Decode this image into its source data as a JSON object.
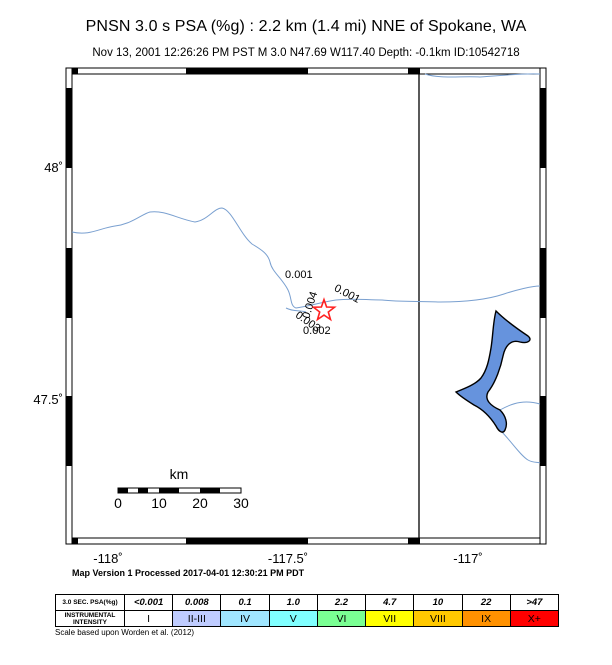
{
  "title": "PNSN 3.0 s PSA (%g) : 2.2 km (1.4 mi) NNE of Spokane, WA",
  "subtitle": "Nov 13, 2001 12:26:26 PM PST   M 3.0   N47.69 W117.40   Depth: -0.1km   ID:10542718",
  "map": {
    "lon_range": [
      -118.1,
      -116.8
    ],
    "lat_range": [
      47.2,
      48.2
    ],
    "lon_ticks": [
      {
        "label": "-118˚",
        "value": -118.0
      },
      {
        "label": "-117.5˚",
        "value": -117.5
      },
      {
        "label": "-117˚",
        "value": -117.0
      }
    ],
    "lat_ticks": [
      {
        "label": "48˚",
        "value": 48.0
      },
      {
        "label": "47.5˚",
        "value": 47.5
      }
    ],
    "epicenter": {
      "lon": -117.4,
      "lat": 47.69
    },
    "contour_labels": [
      {
        "text": "0.001",
        "lon": -117.47,
        "lat": 47.76
      },
      {
        "text": "0.001",
        "lon": -117.34,
        "lat": 47.72
      },
      {
        "text": "0.004",
        "lon": -117.43,
        "lat": 47.7
      },
      {
        "text": "0.003",
        "lon": -117.45,
        "lat": 47.66
      },
      {
        "text": "0.002",
        "lon": -117.42,
        "lat": 47.64
      }
    ],
    "state_border_lon": -117.04,
    "water_color": "#6693dd",
    "river_color": "#7aa0d0",
    "epicenter_color": "#ff2020"
  },
  "scale_bar": {
    "unit_label": "km",
    "tick_labels": [
      "0",
      "10",
      "20",
      "30"
    ]
  },
  "processed_note": "Map Version 1 Processed 2017-04-01 12:30:21 PM PDT",
  "legend": {
    "psa_header": "3.0 SEC. PSA(%g)",
    "intensity_header": "INSTRUMENTAL INTENSITY",
    "psa_values": [
      "<0.001",
      "0.008",
      "0.1",
      "1.0",
      "2.2",
      "4.7",
      "10",
      "22",
      ">47"
    ],
    "intensities": [
      {
        "label": "I",
        "color": "#ffffff"
      },
      {
        "label": "II-III",
        "color": "#bfccff"
      },
      {
        "label": "IV",
        "color": "#a0e6ff"
      },
      {
        "label": "V",
        "color": "#80ffff"
      },
      {
        "label": "VI",
        "color": "#7aff93"
      },
      {
        "label": "VII",
        "color": "#ffff00"
      },
      {
        "label": "VIII",
        "color": "#ffc800"
      },
      {
        "label": "IX",
        "color": "#ff9100"
      },
      {
        "label": "X+",
        "color": "#ff0000"
      }
    ]
  },
  "scale_note": "Scale based upon Worden et al. (2012)"
}
